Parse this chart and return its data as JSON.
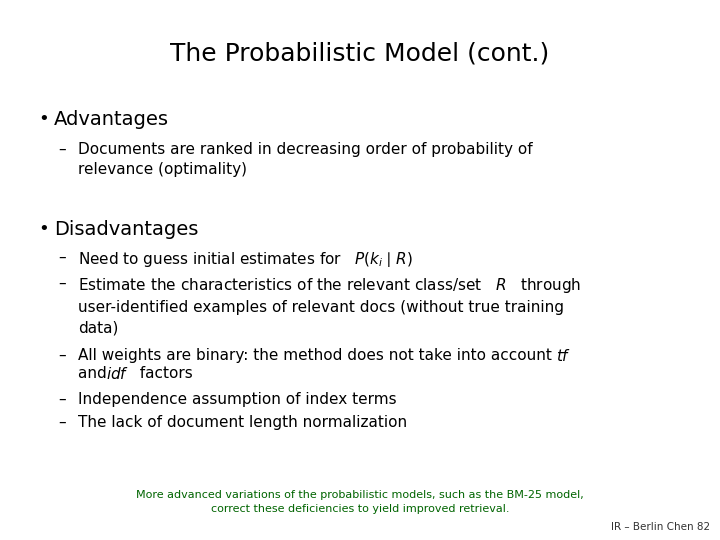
{
  "title": "The Probabilistic Model (cont.)",
  "bg_color": "#ffffff",
  "title_color": "#000000",
  "title_fontsize": 18,
  "title_font": "DejaVu Sans",
  "body_fontsize": 11,
  "body_font": "DejaVu Sans",
  "bullet_color": "#000000",
  "sub_bullet_color": "#000000",
  "footer_color": "#006400",
  "footer_line1": "More advanced variations of the probabilistic models, such as the BM-25 model,",
  "footer_line2": "correct these deficiencies to yield improved retrieval.",
  "footer_right": "IR – Berlin Chen 82",
  "footer_fontsize": 8.0,
  "credit_fontsize": 7.5
}
